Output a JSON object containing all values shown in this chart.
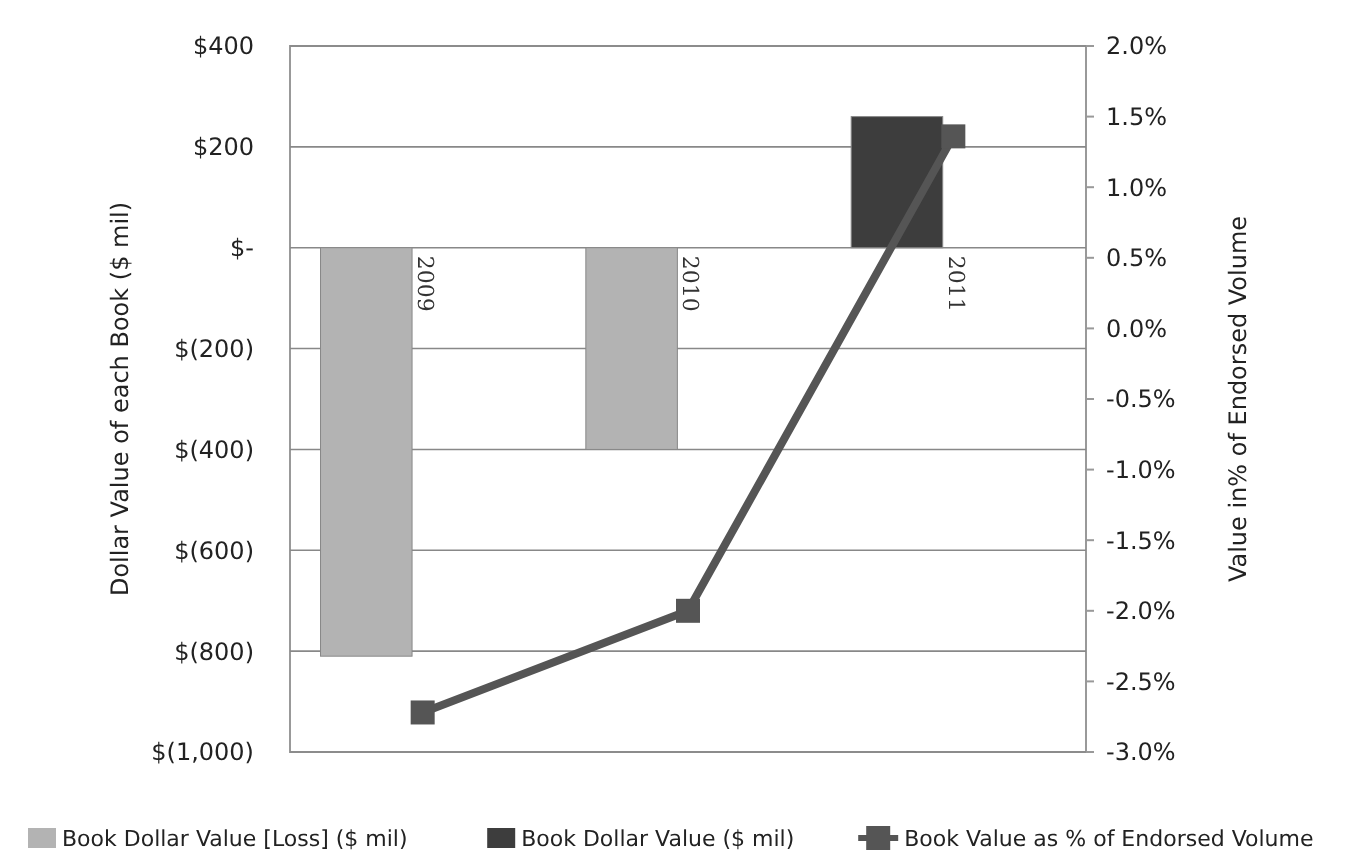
{
  "chart_data": {
    "type": "bar",
    "categories": [
      "2009",
      "2010",
      "2011"
    ],
    "ylabel": "Dollar Value of each Book ($ mil)",
    "y2label": "Value in% of Endorsed Volume",
    "series": [
      {
        "name": "Book Dollar Value [Loss] ($ mil)",
        "color": "#b3b3b3",
        "values": [
          -810,
          -400,
          null
        ]
      },
      {
        "name": "Book Dollar Value ($ mil)",
        "color": "#3d3d3d",
        "values": [
          null,
          null,
          260
        ]
      },
      {
        "name": "Book Value as % of Endorsed Volume",
        "type": "line",
        "axis": "y2",
        "color": "#555555",
        "values": [
          -2.72,
          -2.0,
          1.36
        ]
      }
    ],
    "ylim": [
      -1000,
      400
    ],
    "yticks": [
      {
        "value": 400,
        "label": "$400"
      },
      {
        "value": 200,
        "label": "$200"
      },
      {
        "value": 0,
        "label": "$-"
      },
      {
        "value": -200,
        "label": "$(200)"
      },
      {
        "value": -400,
        "label": "$(400)"
      },
      {
        "value": -600,
        "label": "$(600)"
      },
      {
        "value": -800,
        "label": "$(800)"
      },
      {
        "value": -1000,
        "label": "$(1,000)"
      }
    ],
    "y2lim": [
      -3.0,
      2.0
    ],
    "y2ticks": [
      {
        "value": 2.0,
        "label": "2.0%"
      },
      {
        "value": 1.5,
        "label": "1.5%"
      },
      {
        "value": 1.0,
        "label": "1.0%"
      },
      {
        "value": 0.5,
        "label": "0.5%"
      },
      {
        "value": 0.0,
        "label": "0.0%"
      },
      {
        "value": -0.5,
        "label": "-0.5%"
      },
      {
        "value": -1.0,
        "label": "-1.0%"
      },
      {
        "value": -1.5,
        "label": "-1.5%"
      },
      {
        "value": -2.0,
        "label": "-2.0%"
      },
      {
        "value": -2.5,
        "label": "-2.5%"
      },
      {
        "value": -3.0,
        "label": "-3.0%"
      }
    ],
    "grid": "y",
    "legend": "bottom",
    "marker": "square",
    "line_style": "solid"
  }
}
